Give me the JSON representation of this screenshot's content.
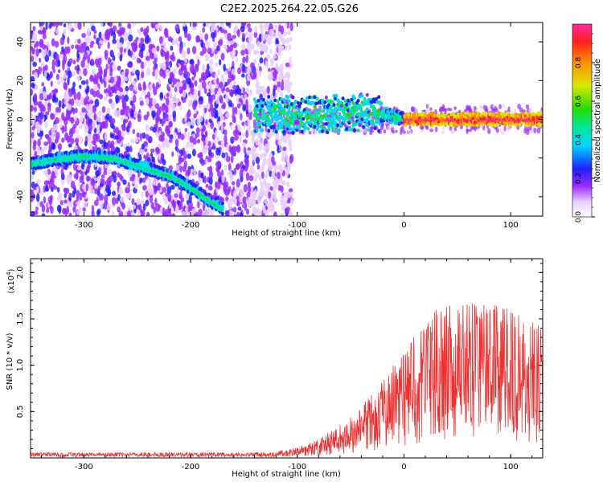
{
  "title": "C2E2.2025.264.22.05.G26",
  "chart_data": [
    {
      "type": "heatmap",
      "title": "C2E2.2025.264.22.05.G26",
      "xlabel": "Height of straight line (km)",
      "ylabel": "Frequency (Hz)",
      "xlim": [
        -350,
        130
      ],
      "ylim": [
        -50,
        50
      ],
      "xticks": [
        -300,
        -200,
        -100,
        0,
        100
      ],
      "yticks": [
        -40,
        -20,
        0,
        20,
        40
      ],
      "colorbar": {
        "label": "Normalized spectral amplitude",
        "range": [
          0,
          1
        ],
        "ticks": [
          0.0,
          0.2,
          0.4,
          0.6,
          0.8
        ],
        "tick_labels": [
          "0.0",
          "0.2",
          "0.4",
          "0.6",
          "0.8"
        ]
      },
      "features": [
        {
          "name": "strong-signal-trace",
          "x": [
            -350,
            -330,
            -300,
            -270,
            -250,
            -220,
            -200,
            -185,
            -170
          ],
          "y": [
            -23,
            -21,
            -19,
            -20,
            -24,
            -29,
            -35,
            -41,
            -46
          ],
          "amplitude": 0.45
        },
        {
          "name": "carrier-line",
          "x": [
            -140,
            -100,
            -60,
            -30,
            0,
            50,
            100,
            130
          ],
          "y": [
            3,
            2,
            3,
            4,
            0,
            0,
            0,
            0
          ],
          "amplitude": 0.9
        }
      ]
    },
    {
      "type": "line",
      "xlabel": "Height of straight line (km)",
      "ylabel": "SNR (10 * v/v)",
      "scale_label": "(x10",
      "scale_exp": "4",
      "scale_close": ")",
      "xlim": [
        -350,
        130
      ],
      "ylim": [
        0,
        2.15
      ],
      "xticks": [
        -300,
        -200,
        -100,
        0,
        100
      ],
      "yticks": [
        0.5,
        1.0,
        1.5,
        2.0
      ],
      "ytick_labels": [
        "0.5",
        "1.0",
        "1.5",
        "2.0"
      ],
      "color": "#ee3030",
      "series": [
        {
          "name": "SNR",
          "x": [
            -350,
            -300,
            -200,
            -150,
            -120,
            -100,
            -80,
            -60,
            -40,
            -20,
            0,
            20,
            40,
            60,
            80,
            100,
            120,
            130
          ],
          "y": [
            0.03,
            0.03,
            0.03,
            0.04,
            0.05,
            0.08,
            0.15,
            0.25,
            0.4,
            0.6,
            0.85,
            1.1,
            1.3,
            1.25,
            1.2,
            1.15,
            1.05,
            1.0
          ]
        }
      ]
    }
  ]
}
